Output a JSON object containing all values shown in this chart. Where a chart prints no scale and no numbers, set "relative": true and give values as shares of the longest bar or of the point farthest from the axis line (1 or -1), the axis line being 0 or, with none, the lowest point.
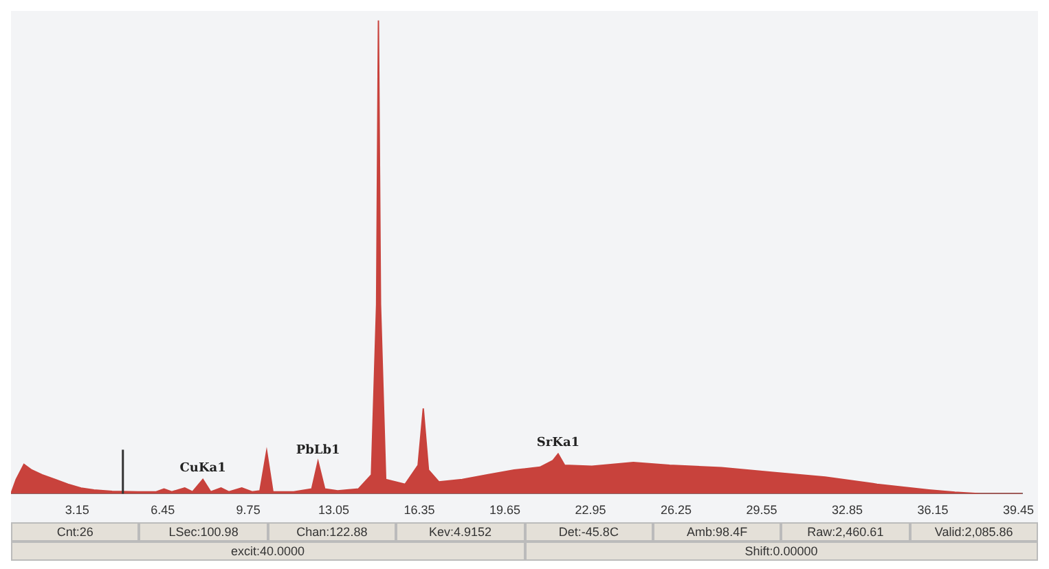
{
  "chart_data": {
    "type": "area",
    "relative": true,
    "xlim": [
      0.6,
      39.6
    ],
    "xticks": [
      3.15,
      6.45,
      9.75,
      13.05,
      16.35,
      19.65,
      22.95,
      26.25,
      29.55,
      32.85,
      36.15,
      39.45
    ],
    "grid": false,
    "legend": false,
    "series": [
      {
        "color": "#c8423c",
        "x": [
          0.6,
          0.8,
          1.1,
          1.4,
          1.8,
          2.3,
          2.8,
          3.3,
          3.8,
          4.5,
          5.5,
          6.2,
          6.5,
          6.8,
          7.3,
          7.6,
          8.0,
          8.3,
          8.7,
          9.0,
          9.5,
          9.9,
          10.2,
          10.46,
          10.7,
          11.5,
          12.2,
          12.44,
          12.7,
          13.2,
          14.0,
          14.5,
          14.7,
          14.77,
          14.85,
          15.05,
          15.8,
          16.3,
          16.5,
          16.7,
          17.1,
          18,
          19,
          20,
          21,
          21.5,
          21.7,
          21.95,
          23,
          24.6,
          26,
          28,
          30,
          32,
          34,
          36,
          37,
          38,
          39.6
        ],
        "values": [
          0,
          0.03,
          0.062,
          0.05,
          0.04,
          0.03,
          0.02,
          0.012,
          0.008,
          0.005,
          0.004,
          0.004,
          0.01,
          0.004,
          0.012,
          0.004,
          0.03,
          0.004,
          0.012,
          0.004,
          0.012,
          0.004,
          0.006,
          0.09,
          0.004,
          0.004,
          0.01,
          0.068,
          0.01,
          0.006,
          0.01,
          0.04,
          0.4,
          1,
          0.4,
          0.03,
          0.02,
          0.06,
          0.18,
          0.05,
          0.025,
          0.03,
          0.04,
          0.05,
          0.056,
          0.07,
          0.084,
          0.06,
          0.058,
          0.066,
          0.06,
          0.055,
          0.045,
          0.035,
          0.02,
          0.008,
          0.003,
          0,
          0
        ]
      }
    ],
    "ref_lines": [
      {
        "axis": "x",
        "value": 4.9152,
        "color": "#333333"
      }
    ],
    "annotations": [
      {
        "text": "CuKa1",
        "x": 8.0,
        "y": 0.03
      },
      {
        "text": "PbLb1",
        "x": 12.44,
        "y": 0.068
      },
      {
        "text": "SrKa1",
        "x": 21.7,
        "y": 0.084
      },
      "Cnt:26",
      "LSec:100.98",
      "Chan:122.88",
      "Kev:4.9152",
      "Det:-45.8C",
      "Amb:98.4F",
      "Raw:2,460.61",
      "Valid:2,085.86",
      "excit:40.0000",
      "Shift:0.00000"
    ]
  }
}
